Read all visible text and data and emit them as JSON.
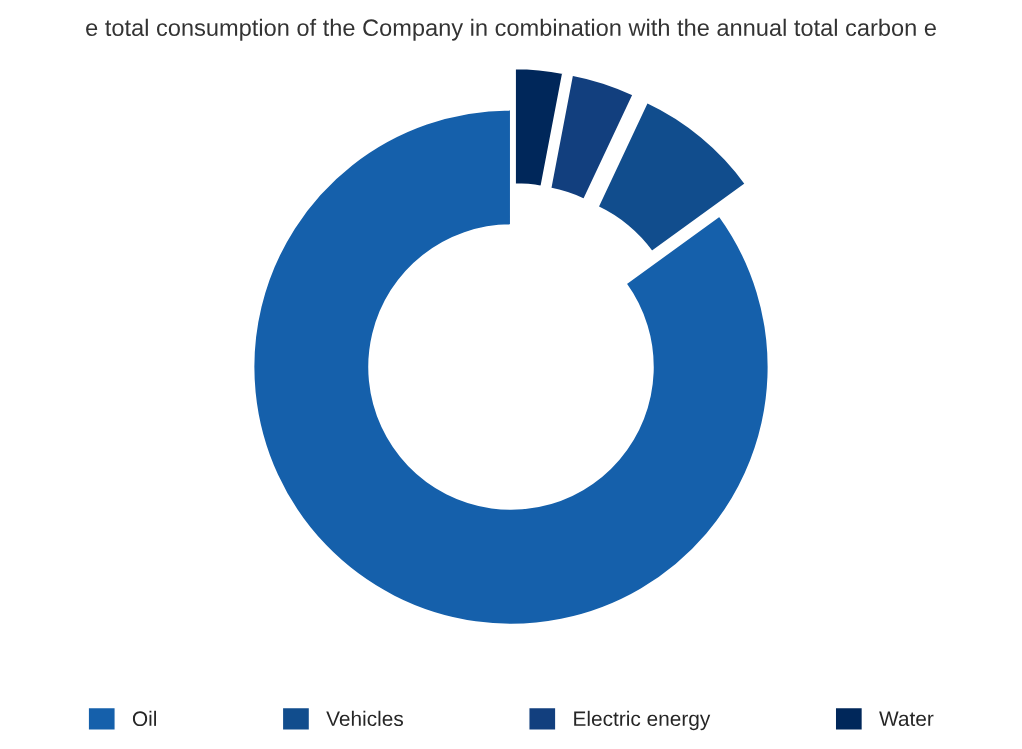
{
  "chart_data": {
    "type": "donut",
    "title": "e total consumption of the Company in combination with the annual total carbon e",
    "categories": [
      "Oil",
      "Vehicles",
      "Electric energy",
      "Water"
    ],
    "values": [
      85,
      8,
      4,
      3
    ],
    "colors": [
      "#1560ab",
      "#114d8d",
      "#123f7e",
      "#00275a"
    ],
    "legend": "bottom"
  }
}
